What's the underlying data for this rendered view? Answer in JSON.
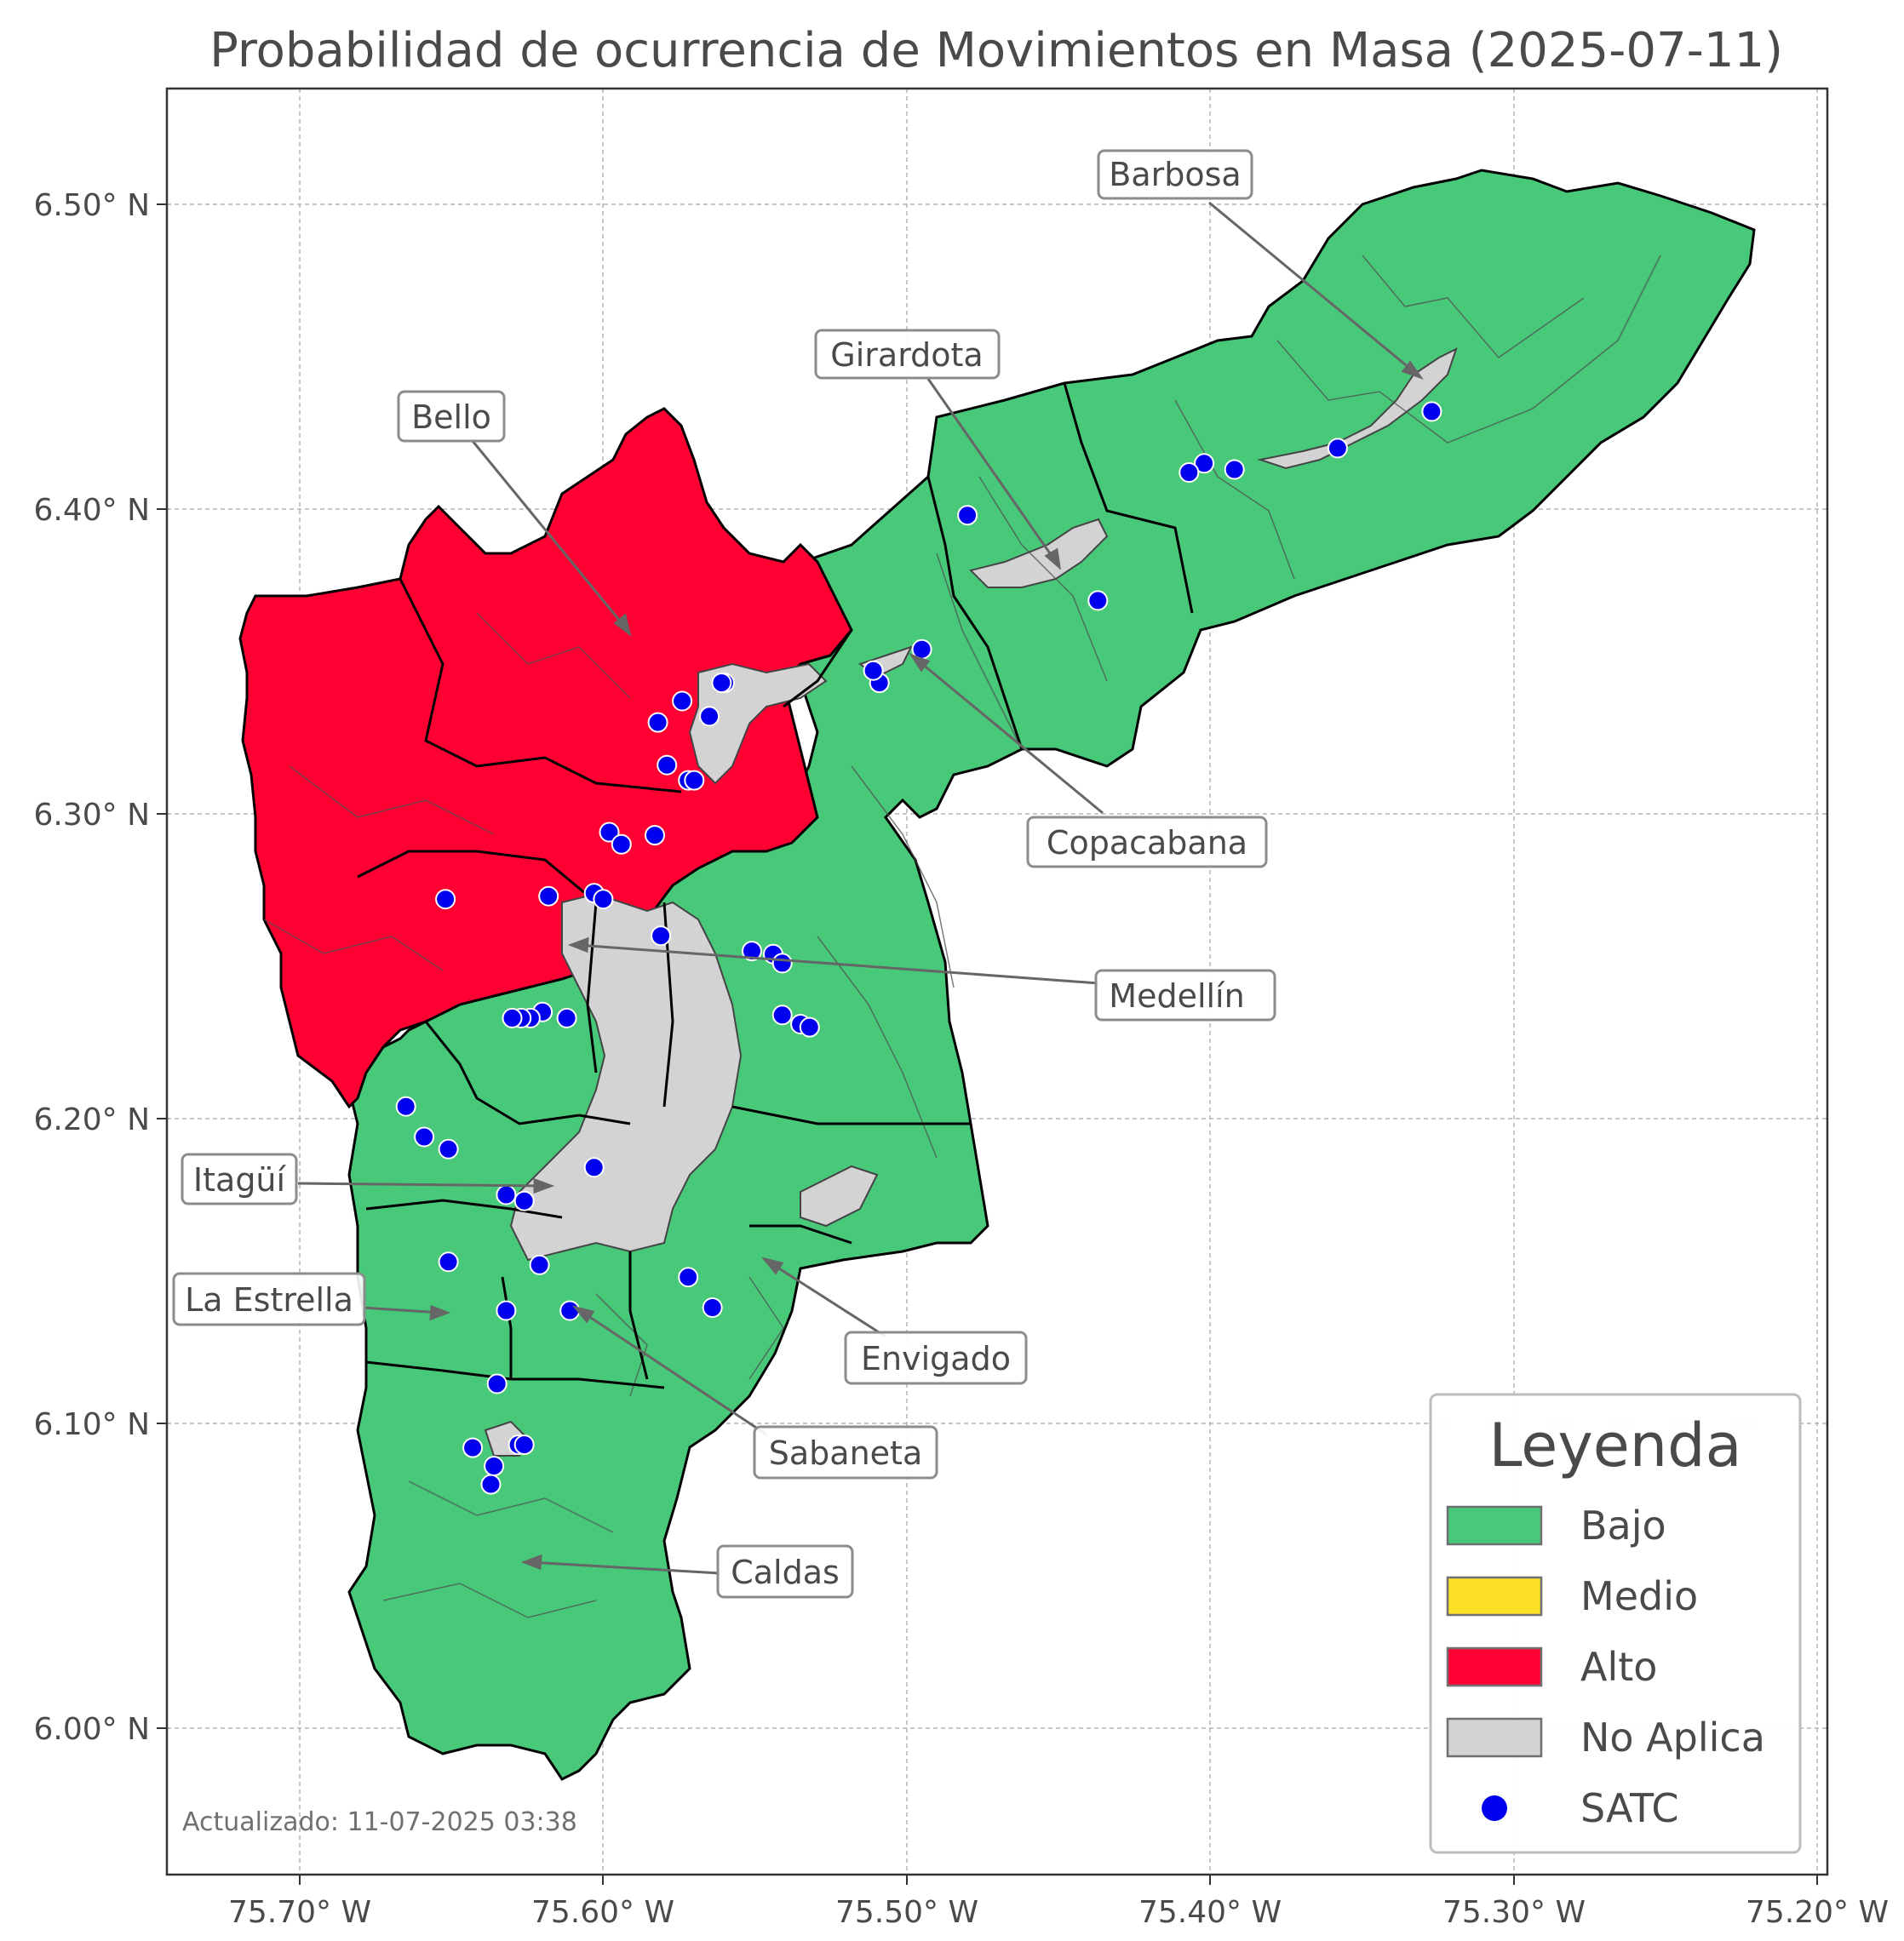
{
  "title": "Probabilidad de ocurrencia de Movimientos en Masa (2025-07-11)",
  "footer": "Actualizado: 11-07-2025 03:38",
  "colors": {
    "bajo": "#48c97a",
    "medio": "#fde129",
    "alto": "#ff0033",
    "no_aplica": "#d3d3d3",
    "satc": "#0000ee",
    "boundary": "#000000",
    "subdivision": "#555555"
  },
  "axes": {
    "x_ticks": [
      "75.70° W",
      "75.60° W",
      "75.50° W",
      "75.40° W",
      "75.30° W",
      "75.20° W"
    ],
    "y_ticks": [
      "6.50° N",
      "6.40° N",
      "6.30° N",
      "6.20° N",
      "6.10° N",
      "6.00° N"
    ],
    "x_range": [
      -75.744,
      -75.196
    ],
    "y_range": [
      5.952,
      6.538
    ],
    "grid": true
  },
  "municipalities": [
    {
      "name": "Barbosa",
      "level": "Bajo"
    },
    {
      "name": "Girardota",
      "level": "Bajo"
    },
    {
      "name": "Bello",
      "level": "Alto"
    },
    {
      "name": "Copacabana",
      "level": "Bajo"
    },
    {
      "name": "Medellín",
      "level": "Alto"
    },
    {
      "name": "Itagüí",
      "level": "Bajo"
    },
    {
      "name": "La Estrella",
      "level": "Bajo"
    },
    {
      "name": "Envigado",
      "level": "Bajo"
    },
    {
      "name": "Sabaneta",
      "level": "Bajo"
    },
    {
      "name": "Caldas",
      "level": "Bajo"
    }
  ],
  "legend": {
    "title": "Leyenda",
    "items": [
      {
        "label": "Bajo",
        "color": "#48c97a",
        "kind": "patch"
      },
      {
        "label": "Medio",
        "color": "#fde129",
        "kind": "patch"
      },
      {
        "label": "Alto",
        "color": "#ff0033",
        "kind": "patch"
      },
      {
        "label": "No Aplica",
        "color": "#d3d3d3",
        "kind": "patch"
      },
      {
        "label": "SATC",
        "color": "#0000ee",
        "kind": "point"
      }
    ]
  },
  "satc_stations": [
    [
      -75.327,
      6.432
    ],
    [
      -75.358,
      6.42
    ],
    [
      -75.392,
      6.413
    ],
    [
      -75.402,
      6.415
    ],
    [
      -75.407,
      6.412
    ],
    [
      -75.48,
      6.398
    ],
    [
      -75.437,
      6.37
    ],
    [
      -75.495,
      6.354
    ],
    [
      -75.509,
      6.343
    ],
    [
      -75.511,
      6.347
    ],
    [
      -75.56,
      6.343
    ],
    [
      -75.561,
      6.343
    ],
    [
      -75.574,
      6.337
    ],
    [
      -75.565,
      6.332
    ],
    [
      -75.582,
      6.33
    ],
    [
      -75.579,
      6.316
    ],
    [
      -75.572,
      6.311
    ],
    [
      -75.57,
      6.311
    ],
    [
      -75.598,
      6.294
    ],
    [
      -75.594,
      6.29
    ],
    [
      -75.583,
      6.293
    ],
    [
      -75.652,
      6.272
    ],
    [
      -75.618,
      6.273
    ],
    [
      -75.603,
      6.274
    ],
    [
      -75.6,
      6.272
    ],
    [
      -75.581,
      6.26
    ],
    [
      -75.551,
      6.255
    ],
    [
      -75.544,
      6.254
    ],
    [
      -75.541,
      6.251
    ],
    [
      -75.541,
      6.234
    ],
    [
      -75.535,
      6.231
    ],
    [
      -75.532,
      6.23
    ],
    [
      -75.62,
      6.235
    ],
    [
      -75.624,
      6.233
    ],
    [
      -75.627,
      6.233
    ],
    [
      -75.63,
      6.233
    ],
    [
      -75.612,
      6.233
    ],
    [
      -75.665,
      6.204
    ],
    [
      -75.659,
      6.194
    ],
    [
      -75.651,
      6.19
    ],
    [
      -75.603,
      6.184
    ],
    [
      -75.632,
      6.175
    ],
    [
      -75.626,
      6.173
    ],
    [
      -75.651,
      6.153
    ],
    [
      -75.621,
      6.152
    ],
    [
      -75.572,
      6.148
    ],
    [
      -75.564,
      6.138
    ],
    [
      -75.632,
      6.137
    ],
    [
      -75.611,
      6.137
    ],
    [
      -75.635,
      6.113
    ],
    [
      -75.643,
      6.092
    ],
    [
      -75.628,
      6.093
    ],
    [
      -75.626,
      6.093
    ],
    [
      -75.636,
      6.086
    ],
    [
      -75.637,
      6.08
    ]
  ]
}
